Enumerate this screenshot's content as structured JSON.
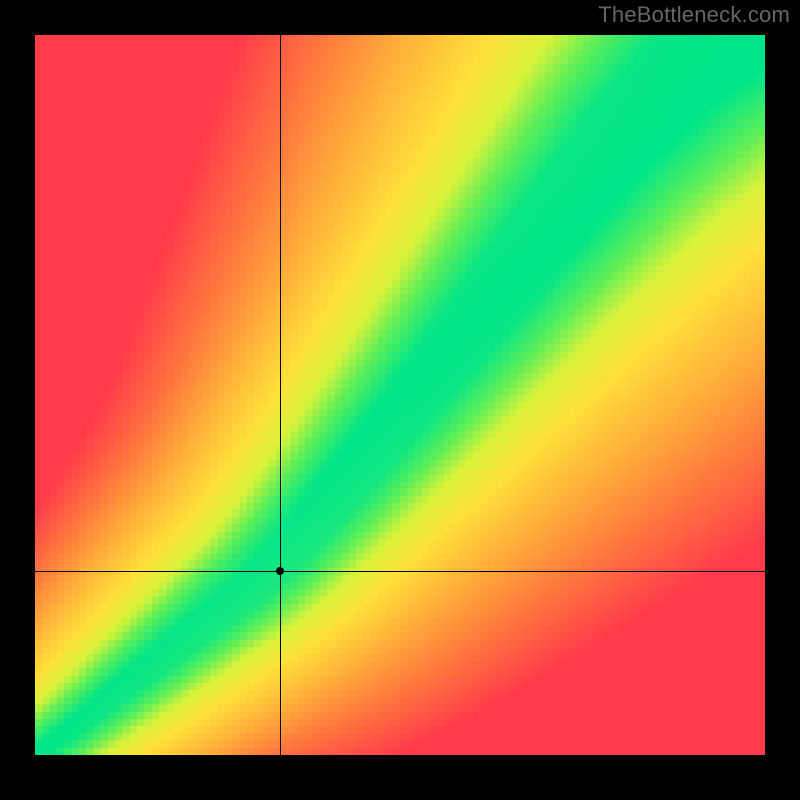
{
  "watermark": "TheBottleneck.com",
  "chart": {
    "type": "heatmap",
    "grid_size": 100,
    "aspect_width": 730,
    "aspect_height": 720,
    "xlim": [
      0,
      1
    ],
    "ylim": [
      0,
      1
    ],
    "background_color": "#000000",
    "page_background": "#000000",
    "watermark_color": "#666666",
    "watermark_fontsize": 22,
    "crosshair_color": "#000000",
    "crosshair_width": 1,
    "point_color": "#000000",
    "point_radius": 4,
    "crosshair_x": 0.335,
    "crosshair_y": 0.255,
    "diagonal": {
      "description": "Optimal-match ridge: green band along y = f(x) where GPU/CPU are balanced",
      "curve_points_x": [
        0,
        0.05,
        0.1,
        0.15,
        0.2,
        0.25,
        0.3,
        0.35,
        0.4,
        0.5,
        0.6,
        0.7,
        0.8,
        0.9,
        1.0
      ],
      "curve_points_y": [
        0,
        0.035,
        0.075,
        0.115,
        0.155,
        0.195,
        0.235,
        0.285,
        0.345,
        0.47,
        0.6,
        0.73,
        0.855,
        0.96,
        1.03
      ],
      "band_half_width_start": 0.01,
      "band_half_width_end": 0.065
    },
    "color_stops": [
      {
        "t": 0.0,
        "color": "#00e58a"
      },
      {
        "t": 0.12,
        "color": "#5fef57"
      },
      {
        "t": 0.22,
        "color": "#d9f23a"
      },
      {
        "t": 0.35,
        "color": "#ffe03a"
      },
      {
        "t": 0.55,
        "color": "#ffb03a"
      },
      {
        "t": 0.75,
        "color": "#ff7a3d"
      },
      {
        "t": 1.0,
        "color": "#ff3a4b"
      }
    ],
    "corner_influence": {
      "origin_pull": 0.15,
      "topright_pull": 0.0
    }
  }
}
